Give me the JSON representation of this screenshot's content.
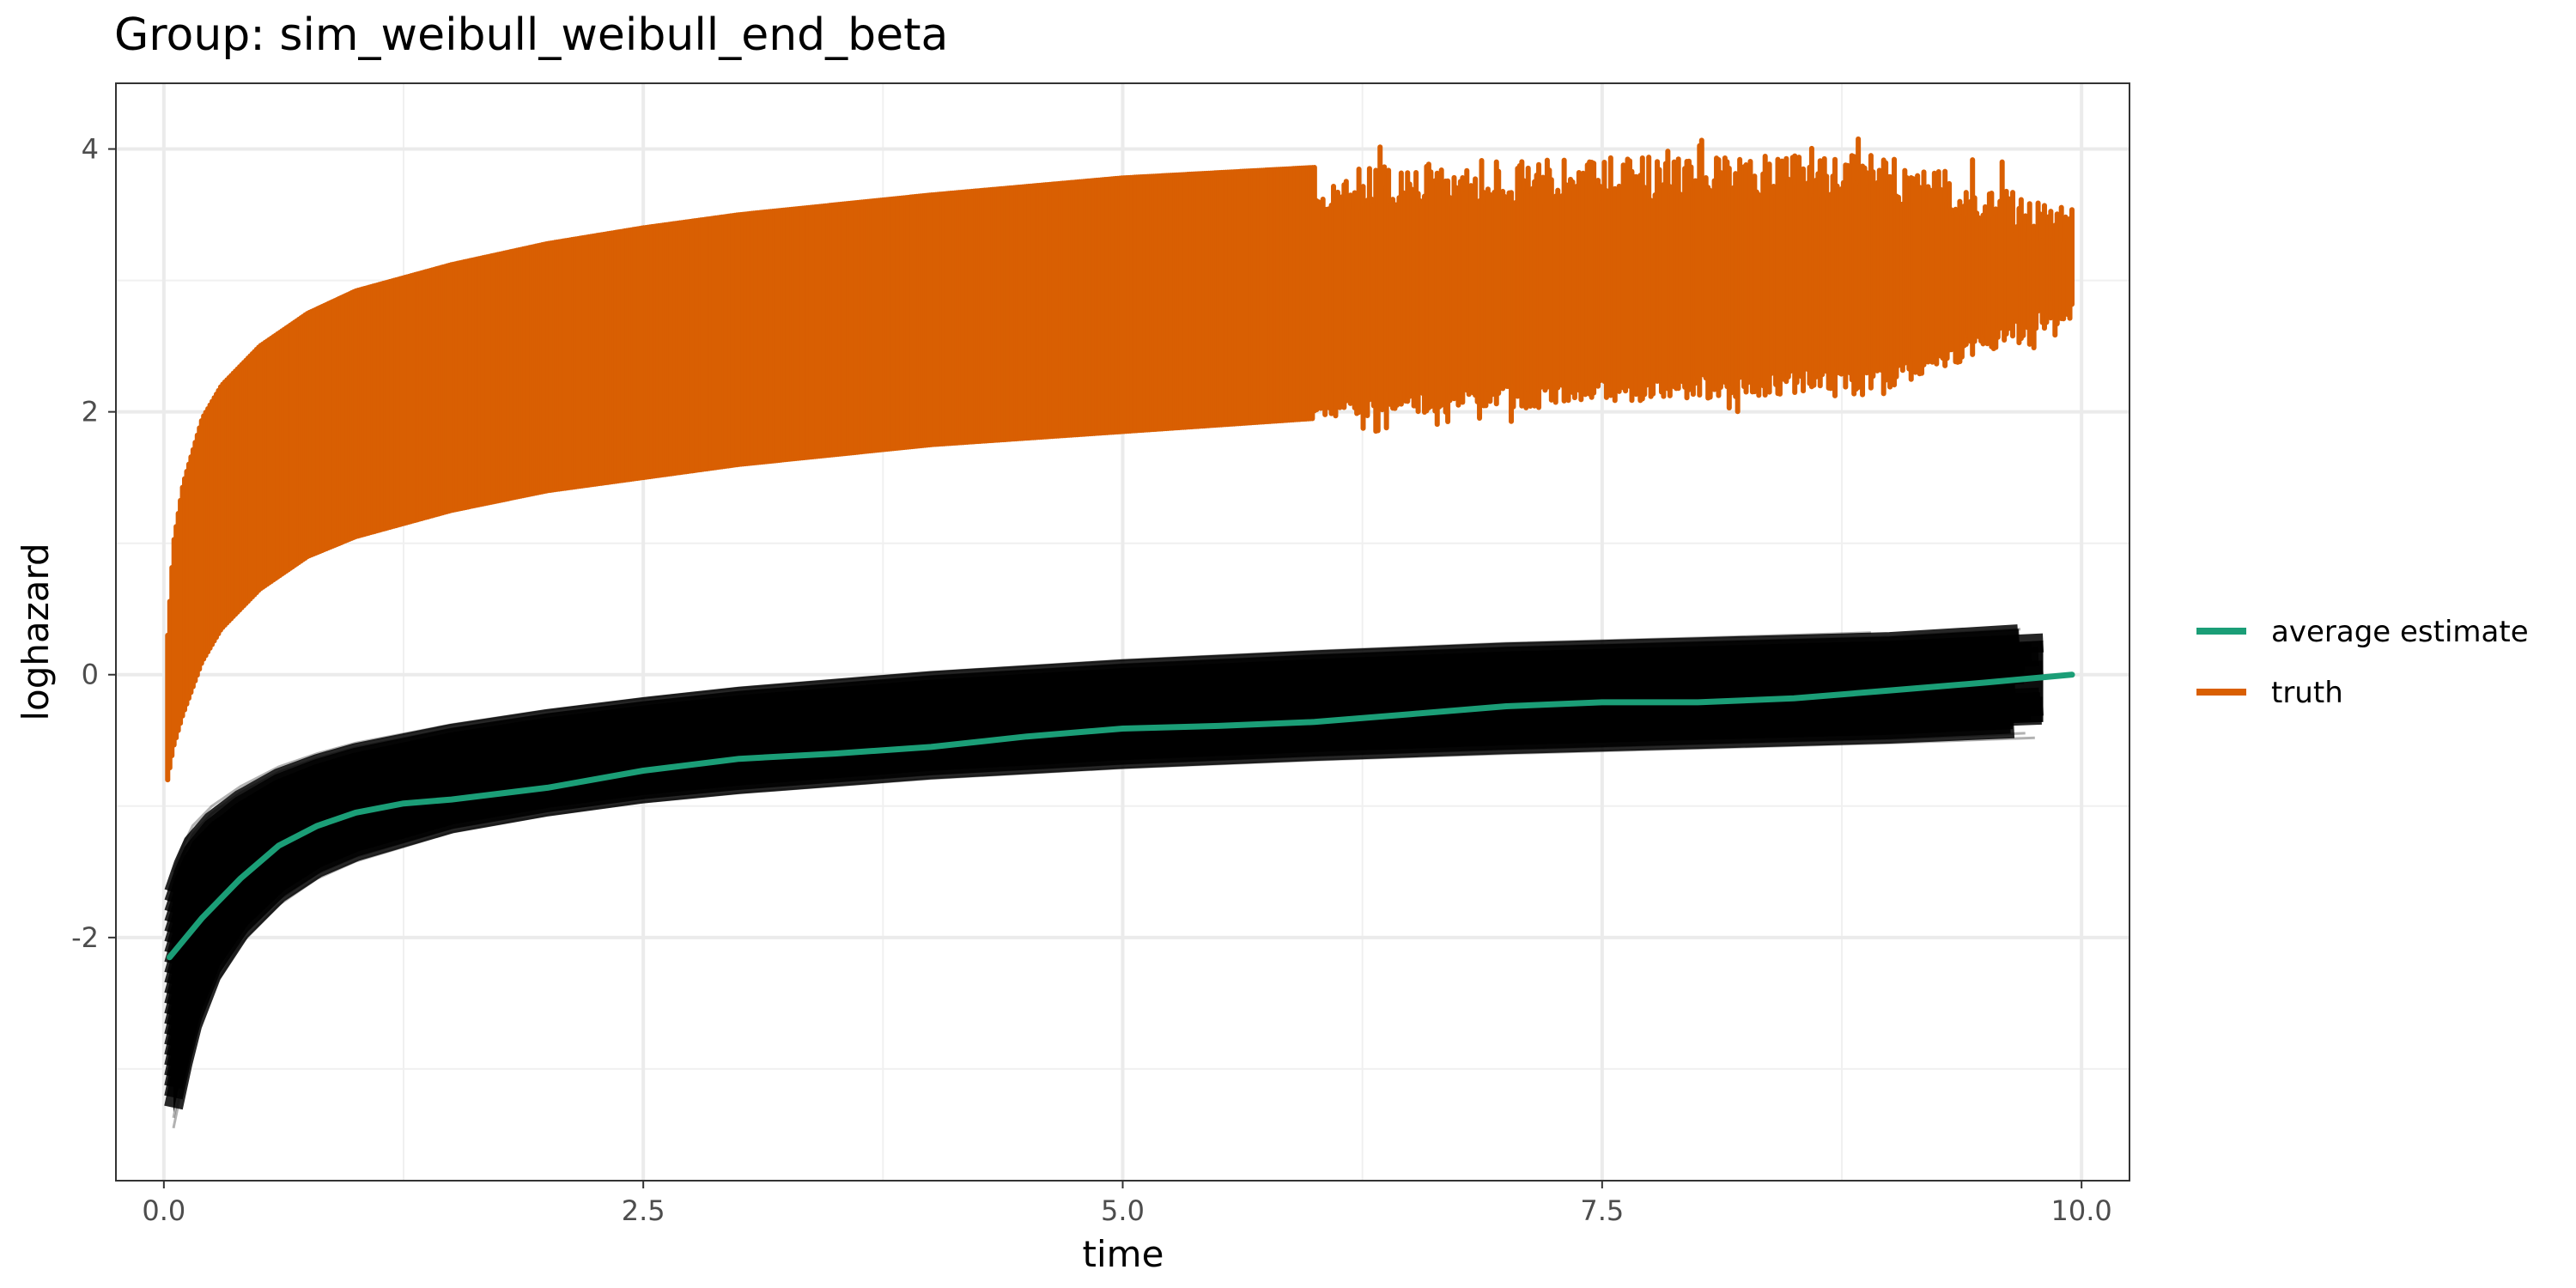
{
  "chart_data": {
    "type": "line",
    "title": "Group: sim_weibull_weibull_end_beta",
    "xlabel": "time",
    "ylabel": "loghazard",
    "xlim": [
      -0.25,
      10.25
    ],
    "ylim": [
      -3.85,
      4.5
    ],
    "x_ticks": [
      0,
      2.5,
      5,
      7.5,
      10
    ],
    "x_tick_labels": [
      "0.0",
      "2.5",
      "5.0",
      "7.5",
      "10.0"
    ],
    "y_ticks": [
      -2,
      0,
      2,
      4
    ],
    "y_tick_labels": [
      "-2",
      "0",
      "2",
      "4"
    ],
    "grid": true,
    "legend_position": "right",
    "colors": {
      "average_estimate": "#1B9E77",
      "truth": "#D95F02",
      "estimates": "#000000"
    },
    "legend": [
      {
        "label": "average estimate",
        "color": "#1B9E77"
      },
      {
        "label": "truth",
        "color": "#D95F02"
      }
    ],
    "series": [
      {
        "name": "average estimate",
        "x": [
          0.03,
          0.2,
          0.4,
          0.6,
          0.8,
          1.0,
          1.25,
          1.5,
          2.0,
          2.5,
          3.0,
          3.5,
          4.0,
          4.5,
          5.0,
          5.5,
          6.0,
          6.5,
          7.0,
          7.5,
          8.0,
          8.5,
          9.0,
          9.5,
          9.95
        ],
        "y": [
          -2.15,
          -1.85,
          -1.55,
          -1.3,
          -1.15,
          -1.05,
          -0.98,
          -0.95,
          -0.86,
          -0.73,
          -0.64,
          -0.6,
          -0.55,
          -0.47,
          -0.41,
          -0.39,
          -0.36,
          -0.3,
          -0.24,
          -0.21,
          -0.21,
          -0.18,
          -0.12,
          -0.06,
          0.0
        ]
      },
      {
        "name": "truth",
        "band_x": [
          0.02,
          0.05,
          0.1,
          0.2,
          0.3,
          0.5,
          0.75,
          1.0,
          1.5,
          2.0,
          2.5,
          3.0,
          4.0,
          5.0,
          6.0,
          7.0,
          8.0,
          9.0,
          9.95
        ],
        "band_upper": [
          0.3,
          1.0,
          1.45,
          1.95,
          2.2,
          2.5,
          2.75,
          2.92,
          3.12,
          3.28,
          3.4,
          3.5,
          3.65,
          3.78,
          3.86,
          3.92,
          3.95,
          3.95,
          3.55
        ],
        "band_lower": [
          -0.8,
          -0.55,
          -0.3,
          0.1,
          0.35,
          0.65,
          0.9,
          1.05,
          1.25,
          1.4,
          1.5,
          1.6,
          1.75,
          1.85,
          1.95,
          2.02,
          2.1,
          2.18,
          2.7
        ]
      },
      {
        "name": "estimates",
        "band_x": [
          0.05,
          0.1,
          0.15,
          0.25,
          0.4,
          0.6,
          0.8,
          1.0,
          1.5,
          2.0,
          2.5,
          3.0,
          4.0,
          5.0,
          6.0,
          7.0,
          8.0,
          9.0,
          9.8
        ],
        "band_upper": [
          -1.5,
          -1.3,
          -1.15,
          -1.0,
          -0.85,
          -0.7,
          -0.6,
          -0.52,
          -0.38,
          -0.27,
          -0.18,
          -0.1,
          0.02,
          0.11,
          0.18,
          0.24,
          0.28,
          0.32,
          0.38
        ],
        "band_lower": [
          -3.45,
          -3.1,
          -2.8,
          -2.4,
          -2.05,
          -1.75,
          -1.55,
          -1.42,
          -1.2,
          -1.07,
          -0.97,
          -0.9,
          -0.79,
          -0.71,
          -0.65,
          -0.6,
          -0.56,
          -0.52,
          -0.48
        ]
      }
    ]
  }
}
